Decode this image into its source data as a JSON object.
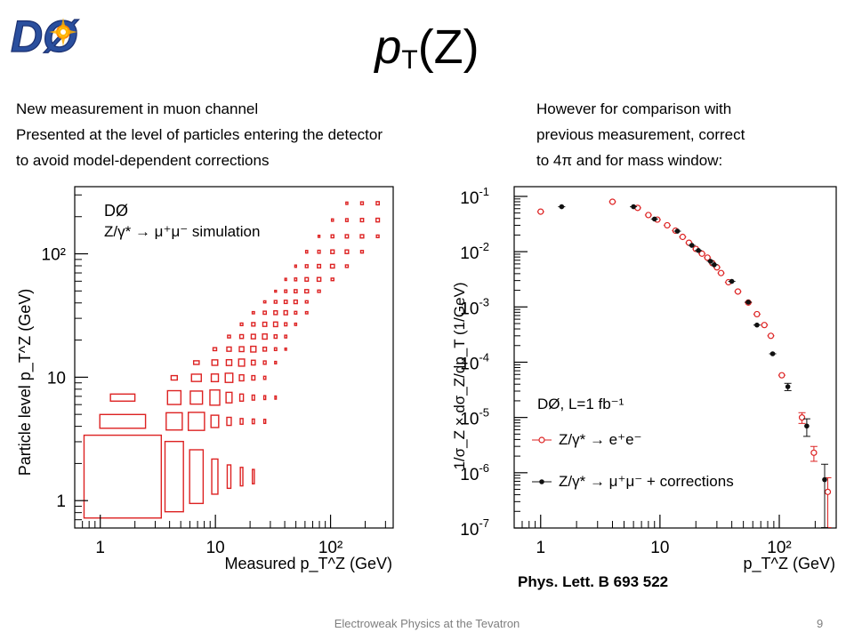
{
  "slide": {
    "logo_text": "DØ",
    "title_main": "p",
    "title_sub": "T",
    "title_rest": "(Z)",
    "left_bullets": [
      "New measurement in muon channel",
      "Presented at the level of particles entering the detector",
      "to avoid model-dependent corrections"
    ],
    "right_bullets": [
      "However for comparison with",
      "previous measurement, correct",
      "to 4π and for mass window:"
    ],
    "citation": "Phys. Lett. B 693 522",
    "footer": "Electroweak Physics at the Tevatron",
    "page_number": "9",
    "colors": {
      "red": "#dd2222",
      "black": "#111111",
      "logo_blue": "#2a4f9e"
    }
  },
  "chart_data": [
    {
      "type": "heatmap",
      "log_x": true,
      "log_y": true,
      "xlim": [
        0.6,
        350
      ],
      "ylim": [
        0.6,
        350
      ],
      "x_ticks": [
        {
          "v": 1,
          "label": "1"
        },
        {
          "v": 10,
          "label": "10"
        },
        {
          "v": 100,
          "label": "10²"
        }
      ],
      "y_ticks": [
        {
          "v": 1,
          "label": "1"
        },
        {
          "v": 10,
          "label": "10"
        },
        {
          "v": 100,
          "label": "10²"
        }
      ],
      "xlabel": "Measured p_T^Z (GeV)",
      "ylabel": "Particle level p_T^Z (GeV)",
      "legend": [
        "DØ",
        "Z/γ* → μ⁺μ⁻ simulation"
      ],
      "bin_edges": [
        0.7,
        3.5,
        5.5,
        8.5,
        11.5,
        15,
        19,
        24,
        30,
        37,
        45,
        55,
        70,
        90,
        120,
        160,
        220,
        300
      ],
      "bins": [
        [
          0,
          0,
          1.0
        ],
        [
          1,
          1,
          0.55
        ],
        [
          2,
          2,
          0.34
        ],
        [
          3,
          3,
          0.24
        ],
        [
          4,
          4,
          0.18
        ],
        [
          5,
          5,
          0.16
        ],
        [
          6,
          6,
          0.14
        ],
        [
          7,
          7,
          0.13
        ],
        [
          8,
          8,
          0.12
        ],
        [
          9,
          9,
          0.1
        ],
        [
          10,
          10,
          0.09
        ],
        [
          11,
          11,
          0.08
        ],
        [
          12,
          12,
          0.07
        ],
        [
          13,
          13,
          0.06
        ],
        [
          14,
          14,
          0.05
        ],
        [
          15,
          15,
          0.04
        ],
        [
          16,
          16,
          0.04
        ],
        [
          0,
          1,
          0.35
        ],
        [
          1,
          0,
          0.72
        ],
        [
          1,
          2,
          0.38
        ],
        [
          2,
          1,
          0.6
        ],
        [
          2,
          3,
          0.22
        ],
        [
          3,
          2,
          0.46
        ],
        [
          3,
          4,
          0.16
        ],
        [
          4,
          3,
          0.35
        ],
        [
          4,
          5,
          0.12
        ],
        [
          5,
          4,
          0.27
        ],
        [
          5,
          6,
          0.1
        ],
        [
          6,
          5,
          0.22
        ],
        [
          6,
          7,
          0.09
        ],
        [
          7,
          6,
          0.18
        ],
        [
          7,
          8,
          0.08
        ],
        [
          8,
          7,
          0.16
        ],
        [
          8,
          9,
          0.07
        ],
        [
          9,
          8,
          0.14
        ],
        [
          9,
          10,
          0.06
        ],
        [
          10,
          9,
          0.12
        ],
        [
          10,
          11,
          0.05
        ],
        [
          11,
          10,
          0.1
        ],
        [
          11,
          12,
          0.05
        ],
        [
          12,
          11,
          0.09
        ],
        [
          12,
          13,
          0.04
        ],
        [
          13,
          12,
          0.08
        ],
        [
          13,
          14,
          0.04
        ],
        [
          14,
          13,
          0.06
        ],
        [
          14,
          15,
          0.03
        ],
        [
          15,
          14,
          0.05
        ],
        [
          15,
          16,
          0.03
        ],
        [
          16,
          15,
          0.05
        ],
        [
          0,
          2,
          0.1
        ],
        [
          1,
          3,
          0.08
        ],
        [
          2,
          4,
          0.07
        ],
        [
          3,
          5,
          0.06
        ],
        [
          4,
          6,
          0.05
        ],
        [
          5,
          7,
          0.05
        ],
        [
          6,
          8,
          0.04
        ],
        [
          7,
          9,
          0.04
        ],
        [
          8,
          10,
          0.03
        ],
        [
          9,
          11,
          0.03
        ],
        [
          10,
          12,
          0.03
        ],
        [
          11,
          13,
          0.03
        ],
        [
          12,
          14,
          0.02
        ],
        [
          13,
          15,
          0.02
        ],
        [
          14,
          16,
          0.02
        ],
        [
          2,
          0,
          0.42
        ],
        [
          3,
          1,
          0.28
        ],
        [
          4,
          2,
          0.22
        ],
        [
          5,
          3,
          0.15
        ],
        [
          6,
          4,
          0.12
        ],
        [
          7,
          5,
          0.1
        ],
        [
          8,
          6,
          0.08
        ],
        [
          9,
          7,
          0.07
        ],
        [
          10,
          8,
          0.06
        ],
        [
          11,
          9,
          0.05
        ],
        [
          12,
          10,
          0.05
        ],
        [
          13,
          11,
          0.04
        ],
        [
          14,
          12,
          0.04
        ],
        [
          15,
          13,
          0.03
        ],
        [
          16,
          14,
          0.03
        ],
        [
          3,
          0,
          0.18
        ],
        [
          4,
          1,
          0.12
        ],
        [
          5,
          2,
          0.1
        ],
        [
          6,
          3,
          0.08
        ],
        [
          7,
          4,
          0.06
        ],
        [
          8,
          5,
          0.05
        ],
        [
          9,
          6,
          0.05
        ],
        [
          10,
          7,
          0.04
        ],
        [
          11,
          8,
          0.04
        ],
        [
          4,
          0,
          0.08
        ],
        [
          5,
          1,
          0.06
        ],
        [
          6,
          2,
          0.05
        ],
        [
          7,
          3,
          0.04
        ],
        [
          8,
          4,
          0.03
        ],
        [
          9,
          5,
          0.03
        ],
        [
          5,
          0,
          0.05
        ],
        [
          6,
          1,
          0.04
        ],
        [
          7,
          2,
          0.03
        ],
        [
          6,
          0,
          0.03
        ],
        [
          7,
          1,
          0.03
        ],
        [
          8,
          2,
          0.02
        ]
      ]
    },
    {
      "type": "scatter",
      "log_x": true,
      "log_y": true,
      "xlim": [
        0.6,
        300
      ],
      "ylim": [
        1e-07,
        0.15
      ],
      "x_ticks": [
        {
          "v": 1,
          "label": "1"
        },
        {
          "v": 10,
          "label": "10"
        },
        {
          "v": 100,
          "label": "10²"
        }
      ],
      "y_ticks": [
        {
          "v": 0.1,
          "base": "10",
          "exp": "-1"
        },
        {
          "v": 0.01,
          "base": "10",
          "exp": "-2"
        },
        {
          "v": 0.001,
          "base": "10",
          "exp": "-3"
        },
        {
          "v": 0.0001,
          "base": "10",
          "exp": "-4"
        },
        {
          "v": 1e-05,
          "base": "10",
          "exp": "-5"
        },
        {
          "v": 1e-06,
          "base": "10",
          "exp": "-6"
        },
        {
          "v": 1e-07,
          "base": "10",
          "exp": "-7"
        }
      ],
      "xlabel": "p_T^Z (GeV)",
      "ylabel": "1/σ_Z × dσ_Z/dp_T (1/GeV)",
      "legend_title": "DØ, L=1 fb⁻¹",
      "series": [
        {
          "name": "Z/γ* → e⁺e⁻",
          "color": "#dd2222",
          "marker": "open-circle",
          "points": [
            [
              1.0,
              0.053,
              0.05
            ],
            [
              4.0,
              0.08,
              0.03
            ],
            [
              6.5,
              0.062,
              0.03
            ],
            [
              8.0,
              0.046,
              0.03
            ],
            [
              9.5,
              0.038,
              0.03
            ],
            [
              11.5,
              0.03,
              0.03
            ],
            [
              13.5,
              0.024,
              0.03
            ],
            [
              15.5,
              0.0185,
              0.03
            ],
            [
              17.5,
              0.0145,
              0.03
            ],
            [
              20,
              0.0112,
              0.03
            ],
            [
              22.5,
              0.0092,
              0.03
            ],
            [
              25,
              0.0078,
              0.03
            ],
            [
              27.5,
              0.0062,
              0.03
            ],
            [
              30,
              0.0052,
              0.03
            ],
            [
              32.5,
              0.0041,
              0.03
            ],
            [
              37.5,
              0.0028,
              0.03
            ],
            [
              45,
              0.0019,
              0.03
            ],
            [
              55,
              0.0012,
              0.03
            ],
            [
              65,
              0.00074,
              0.04
            ],
            [
              75,
              0.00047,
              0.04
            ],
            [
              85,
              0.0003,
              0.05
            ],
            [
              105,
              5.8e-05,
              0.12
            ],
            [
              155,
              1e-05,
              0.22
            ],
            [
              195,
              2.3e-06,
              0.3
            ],
            [
              255,
              4.5e-07,
              0.8
            ]
          ]
        },
        {
          "name": "Z/γ* → μ⁺μ⁻ + corrections",
          "color": "#111111",
          "marker": "filled-circle",
          "points": [
            [
              1.5,
              0.065,
              0.05
            ],
            [
              6.0,
              0.065,
              0.03
            ],
            [
              9.0,
              0.039,
              0.03
            ],
            [
              14.0,
              0.0235,
              0.03
            ],
            [
              18.5,
              0.013,
              0.03
            ],
            [
              21.0,
              0.0105,
              0.03
            ],
            [
              26.5,
              0.0067,
              0.03
            ],
            [
              28.5,
              0.0058,
              0.03
            ],
            [
              40,
              0.0029,
              0.03
            ],
            [
              55,
              0.00122,
              0.04
            ],
            [
              65,
              0.00047,
              0.05
            ],
            [
              88,
              0.000142,
              0.08
            ],
            [
              118,
              3.6e-05,
              0.15
            ],
            [
              170,
              7e-06,
              0.35
            ],
            [
              240,
              7.5e-07,
              0.9
            ]
          ]
        }
      ]
    }
  ]
}
